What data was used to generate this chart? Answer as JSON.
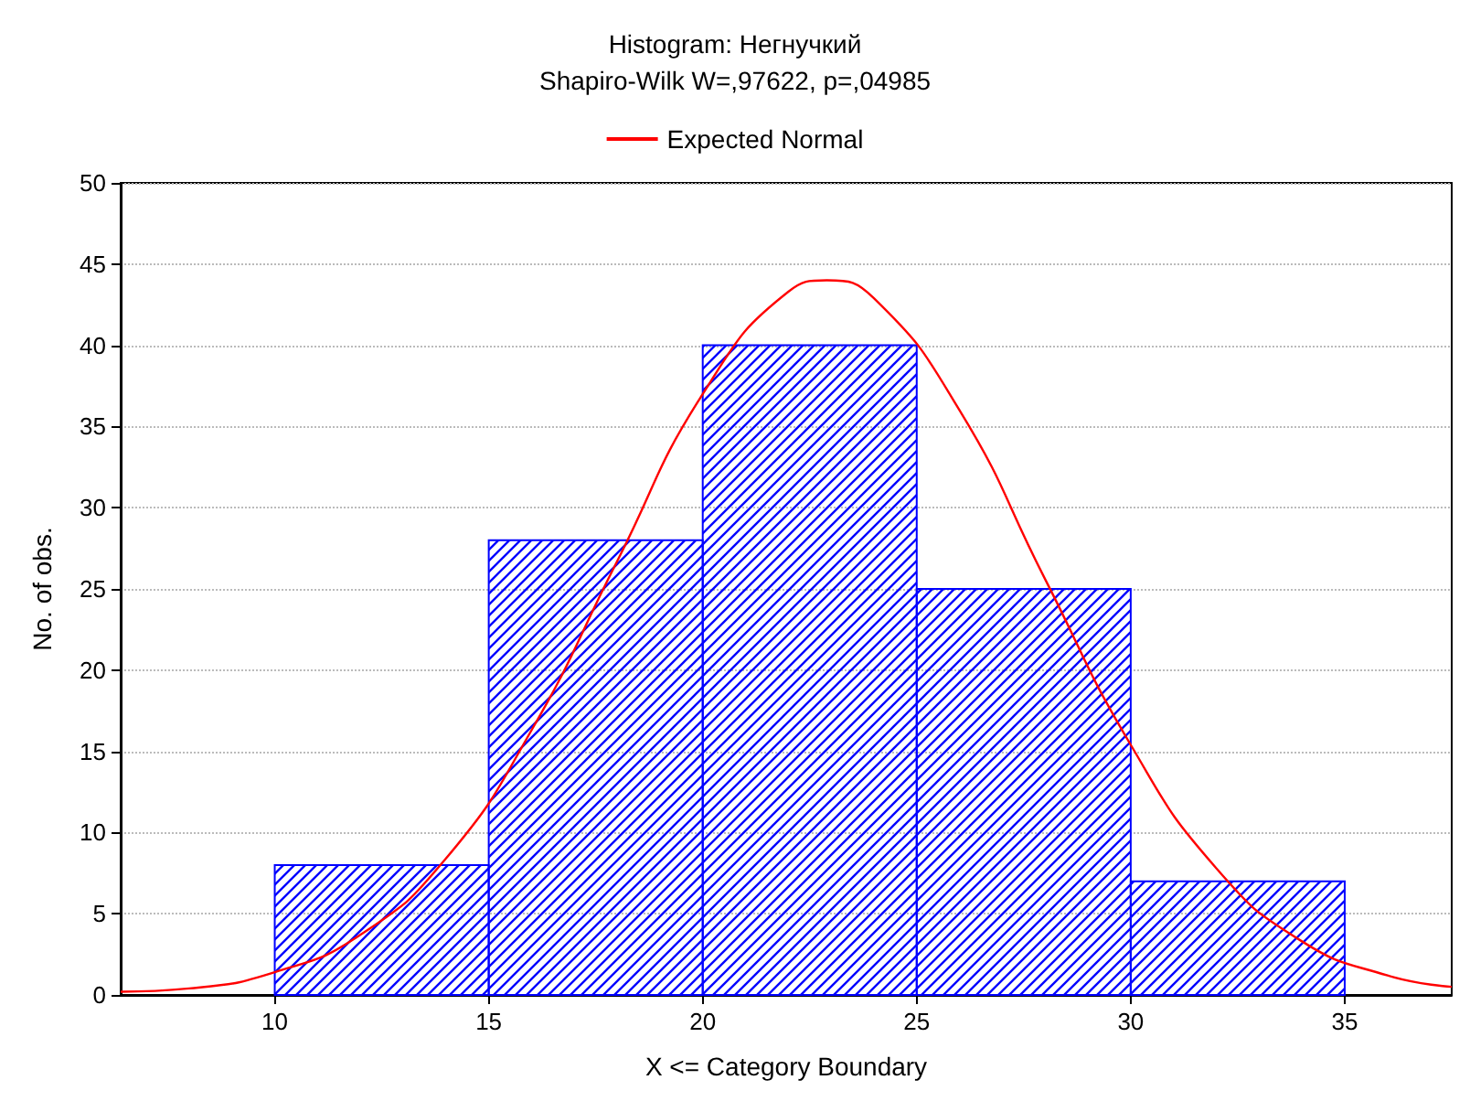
{
  "chart_data": {
    "type": "histogram",
    "title": "Histogram: Негнучкий",
    "subtitle": "Shapiro-Wilk W=,97622, p=,04985",
    "xlabel": "X <= Category Boundary",
    "ylabel": "No. of obs.",
    "bins": [
      10,
      15,
      20,
      25,
      30,
      35
    ],
    "values": [
      8,
      28,
      40,
      25,
      7
    ],
    "color": "#0000ff",
    "series": [
      {
        "type": "line",
        "name": "Expected Normal",
        "color": "#ff0000",
        "x": [
          6.4,
          8,
          10,
          12,
          14,
          16,
          18,
          20,
          22,
          22.9,
          24,
          26,
          28,
          30,
          32,
          34,
          36,
          37.5
        ],
        "values": [
          0.2,
          0.4,
          1.4,
          3.7,
          8.4,
          16.3,
          26.7,
          37,
          43.3,
          44,
          42.9,
          36,
          25.6,
          15.4,
          7.8,
          3.3,
          1.2,
          0.5
        ]
      }
    ],
    "xlim": [
      6.4,
      37.5
    ],
    "xticks": [
      10,
      15,
      20,
      25,
      30,
      35
    ],
    "ylim": [
      0,
      50
    ],
    "yticks": [
      0,
      5,
      10,
      15,
      20,
      25,
      30,
      35,
      40,
      45,
      50
    ],
    "grid": "y",
    "legend": "top",
    "marker": "none"
  }
}
